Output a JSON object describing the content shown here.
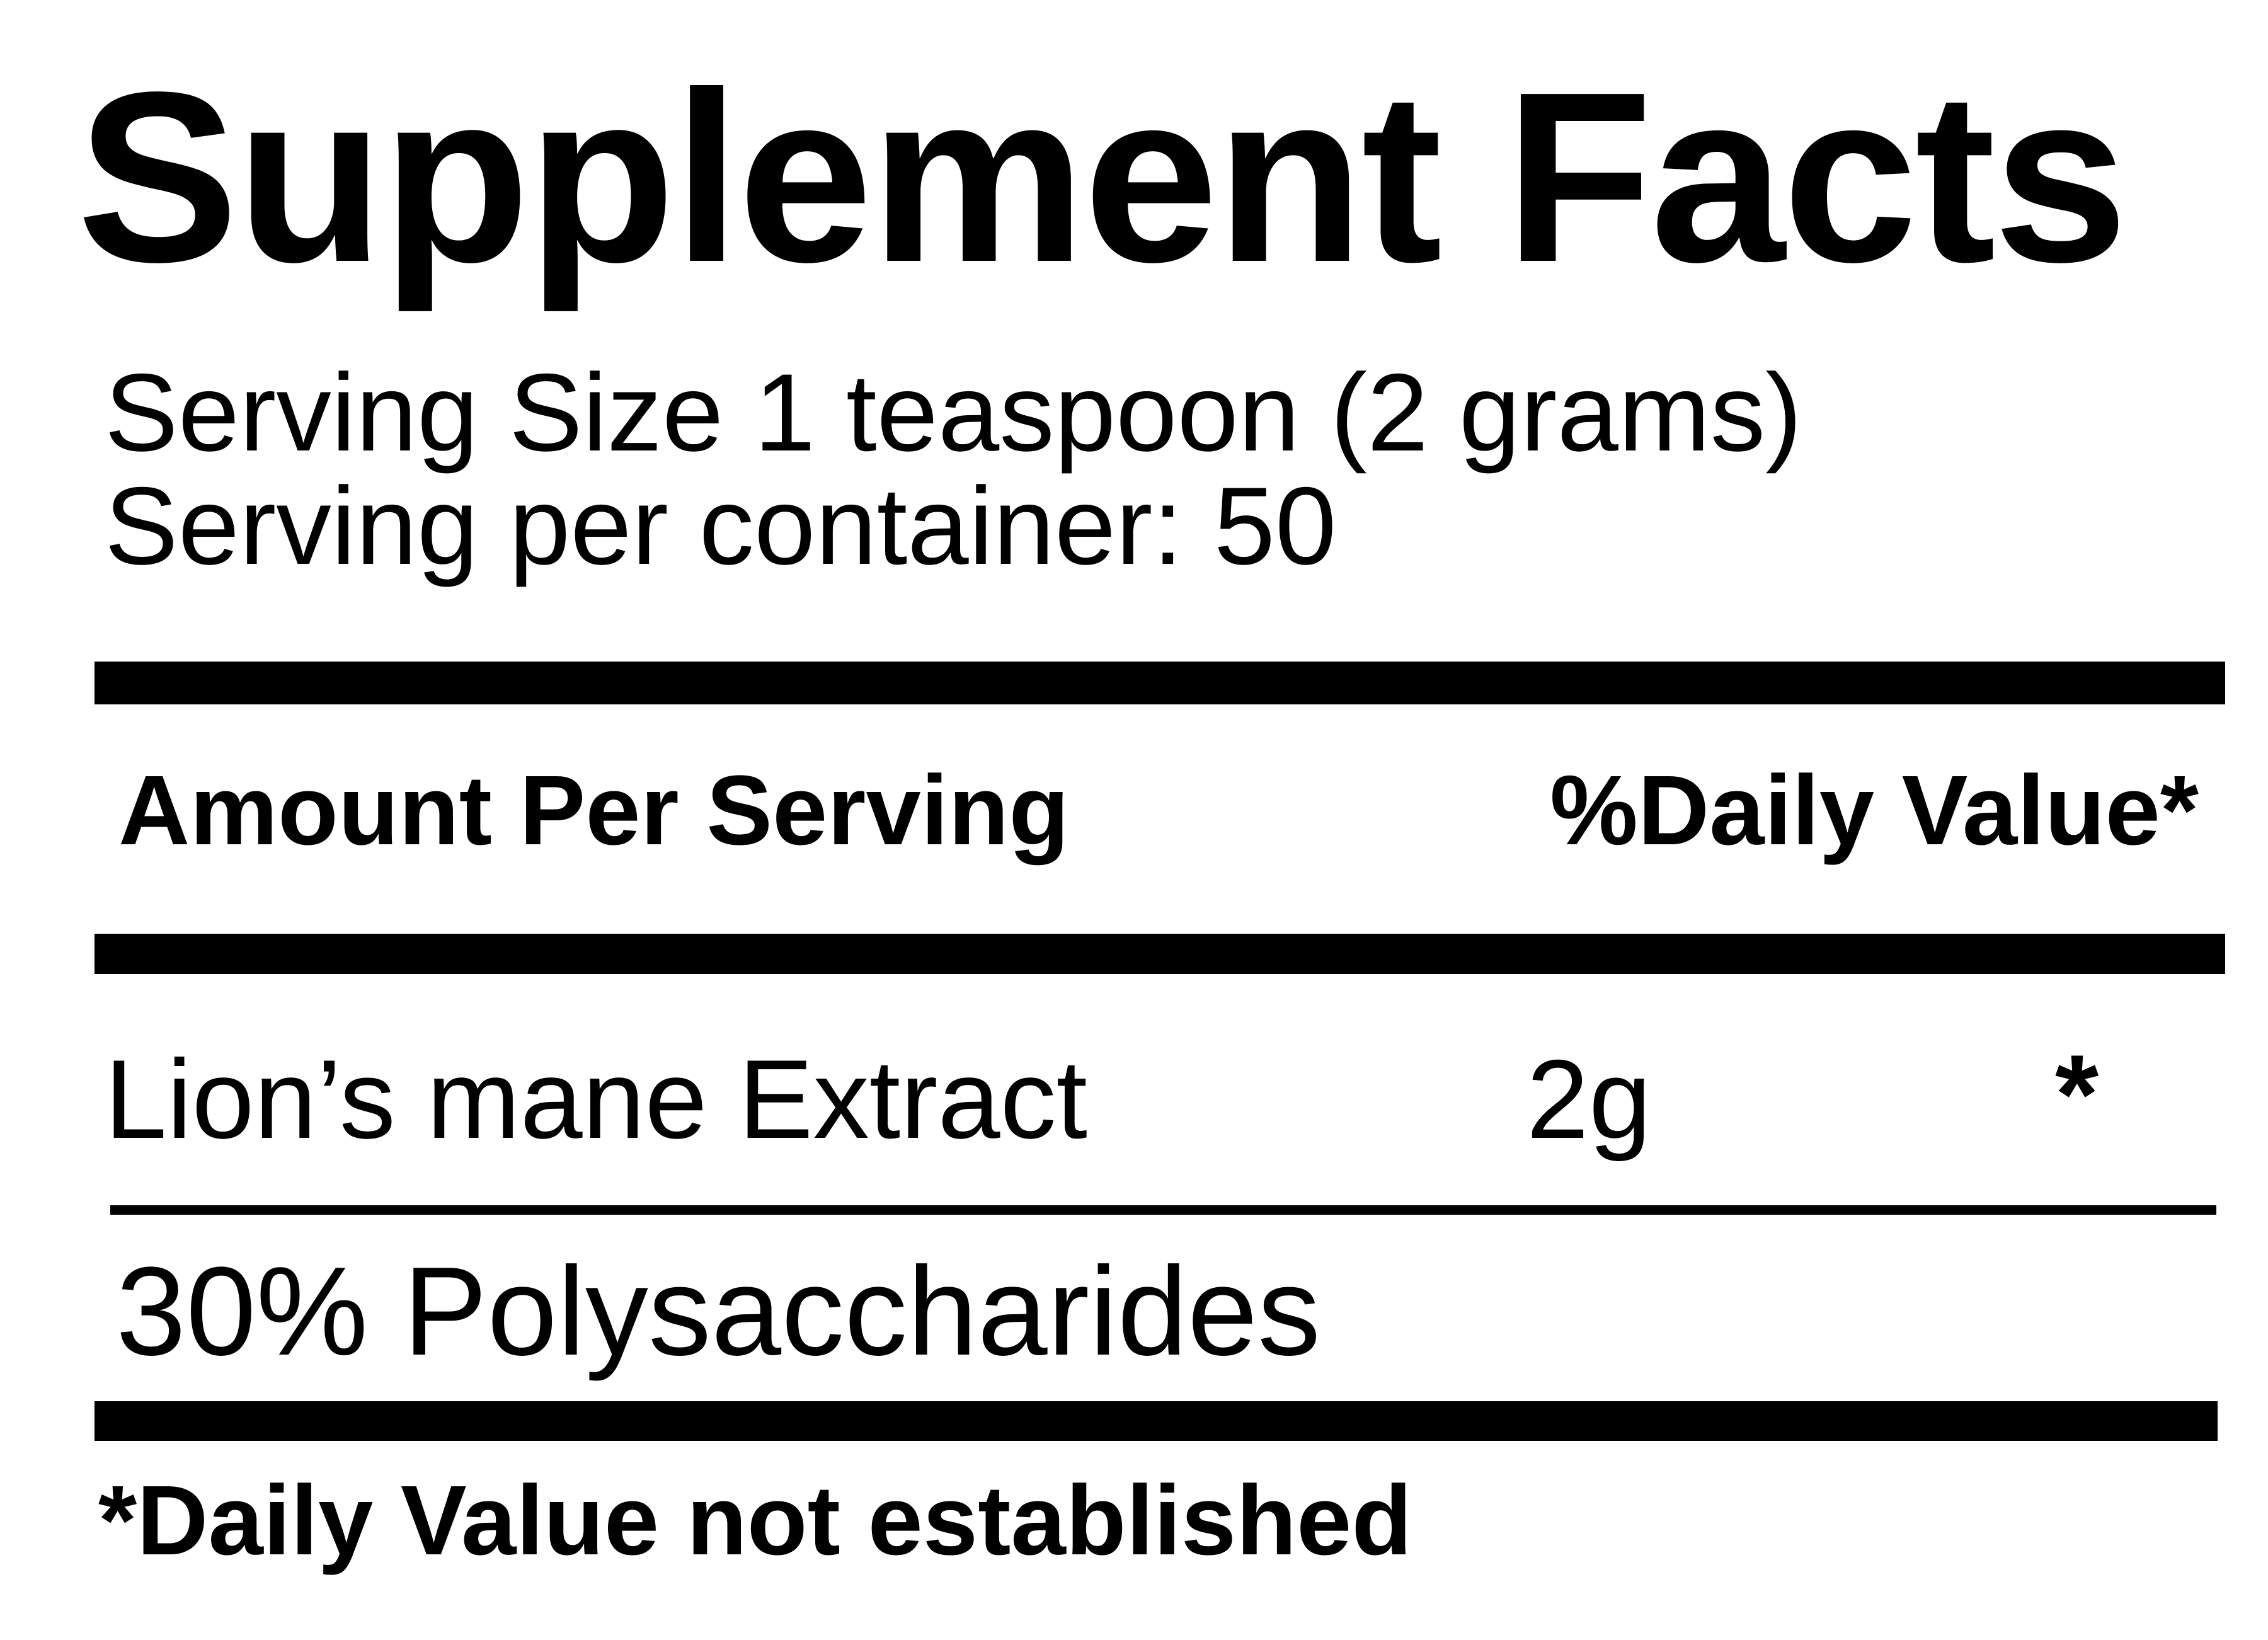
{
  "panel": {
    "title": "Supplement Facts",
    "serving": {
      "size_line": "Serving Size 1 teaspoon (2 grams)",
      "container_line": "Serving per container: 50"
    },
    "columns": {
      "amount_header": "Amount Per Serving",
      "dv_header": "%Daily Value*"
    },
    "ingredients": [
      {
        "name": "Lion’s mane Extract",
        "amount": "2g",
        "dv": "*"
      },
      {
        "name": "30% Polysaccharides",
        "amount": "",
        "dv": ""
      }
    ],
    "footnote": "*Daily Value not established",
    "colors": {
      "ink": "#000000",
      "paper": "#ffffff"
    }
  }
}
